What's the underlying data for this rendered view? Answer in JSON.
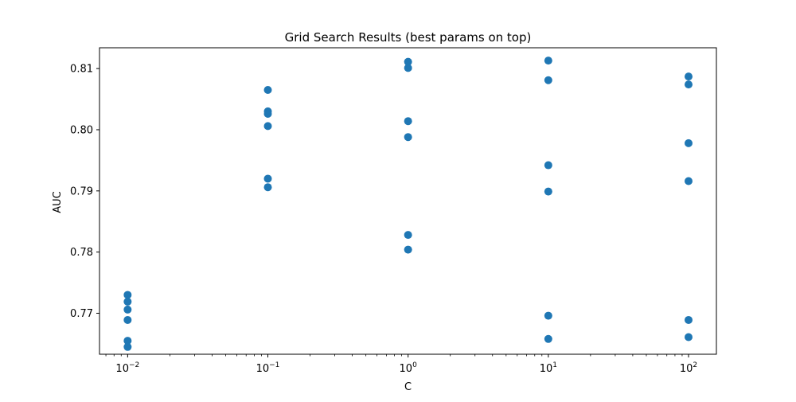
{
  "chart_data": {
    "type": "scatter",
    "title": "Grid Search Results (best params on top)",
    "xlabel": "C",
    "ylabel": "AUC",
    "xscale": "log",
    "xlim": [
      0.0063,
      158
    ],
    "ylim": [
      0.7633,
      0.8134
    ],
    "grid": false,
    "legend": "none",
    "x_ticks": [
      {
        "value": 0.01,
        "base": "10",
        "exp": "−2"
      },
      {
        "value": 0.1,
        "base": "10",
        "exp": "−1"
      },
      {
        "value": 1,
        "base": "10",
        "exp": "0"
      },
      {
        "value": 10,
        "base": "10",
        "exp": "1"
      },
      {
        "value": 100,
        "base": "10",
        "exp": "2"
      }
    ],
    "y_ticks": [
      {
        "value": 0.77,
        "label": "0.77"
      },
      {
        "value": 0.78,
        "label": "0.78"
      },
      {
        "value": 0.79,
        "label": "0.79"
      },
      {
        "value": 0.8,
        "label": "0.80"
      },
      {
        "value": 0.81,
        "label": "0.81"
      }
    ],
    "series": [
      {
        "color": "#1f77b4",
        "points": [
          {
            "x": 0.01,
            "y": 0.773
          },
          {
            "x": 0.01,
            "y": 0.7719
          },
          {
            "x": 0.01,
            "y": 0.7706
          },
          {
            "x": 0.01,
            "y": 0.7689
          },
          {
            "x": 0.01,
            "y": 0.7655
          },
          {
            "x": 0.01,
            "y": 0.7645
          },
          {
            "x": 0.1,
            "y": 0.8065
          },
          {
            "x": 0.1,
            "y": 0.803
          },
          {
            "x": 0.1,
            "y": 0.8026
          },
          {
            "x": 0.1,
            "y": 0.8006
          },
          {
            "x": 0.1,
            "y": 0.792
          },
          {
            "x": 0.1,
            "y": 0.7906
          },
          {
            "x": 1,
            "y": 0.8111
          },
          {
            "x": 1,
            "y": 0.8101
          },
          {
            "x": 1,
            "y": 0.8014
          },
          {
            "x": 1,
            "y": 0.7988
          },
          {
            "x": 1,
            "y": 0.7828
          },
          {
            "x": 1,
            "y": 0.7804
          },
          {
            "x": 10,
            "y": 0.8113
          },
          {
            "x": 10,
            "y": 0.8081
          },
          {
            "x": 10,
            "y": 0.7942
          },
          {
            "x": 10,
            "y": 0.7899
          },
          {
            "x": 10,
            "y": 0.7696
          },
          {
            "x": 10,
            "y": 0.7658
          },
          {
            "x": 100,
            "y": 0.8087
          },
          {
            "x": 100,
            "y": 0.8074
          },
          {
            "x": 100,
            "y": 0.7978
          },
          {
            "x": 100,
            "y": 0.7916
          },
          {
            "x": 100,
            "y": 0.7689
          },
          {
            "x": 100,
            "y": 0.7661
          }
        ]
      }
    ]
  }
}
